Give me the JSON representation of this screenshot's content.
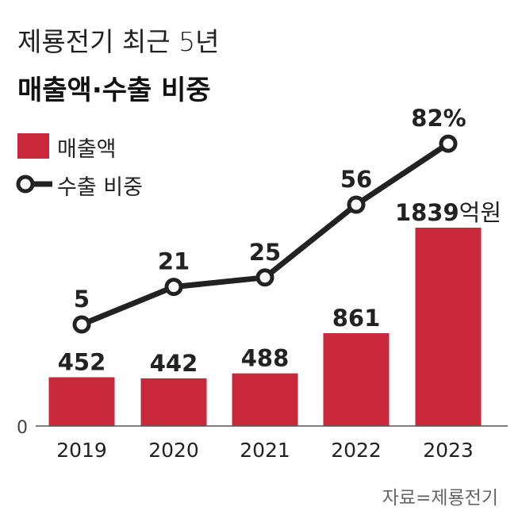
{
  "title": "제룡전기 최근 5년",
  "subtitle": "매출액·수출 비중",
  "source": "자료=제룡전기",
  "colors": {
    "bar": "#c8283a",
    "line": "#222222"
  },
  "chart_data": {
    "type": "bar+line",
    "categories": [
      "2019",
      "2020",
      "2021",
      "2022",
      "2023"
    ],
    "series": [
      {
        "name": "매출액",
        "type": "bar",
        "values": [
          452,
          442,
          488,
          861,
          1839
        ],
        "unit": "억원"
      },
      {
        "name": "수출 비중",
        "type": "line",
        "values": [
          5,
          21,
          25,
          56,
          82
        ],
        "unit": "%"
      }
    ],
    "y_tick": "0",
    "legend": "top-left",
    "grid": false
  }
}
